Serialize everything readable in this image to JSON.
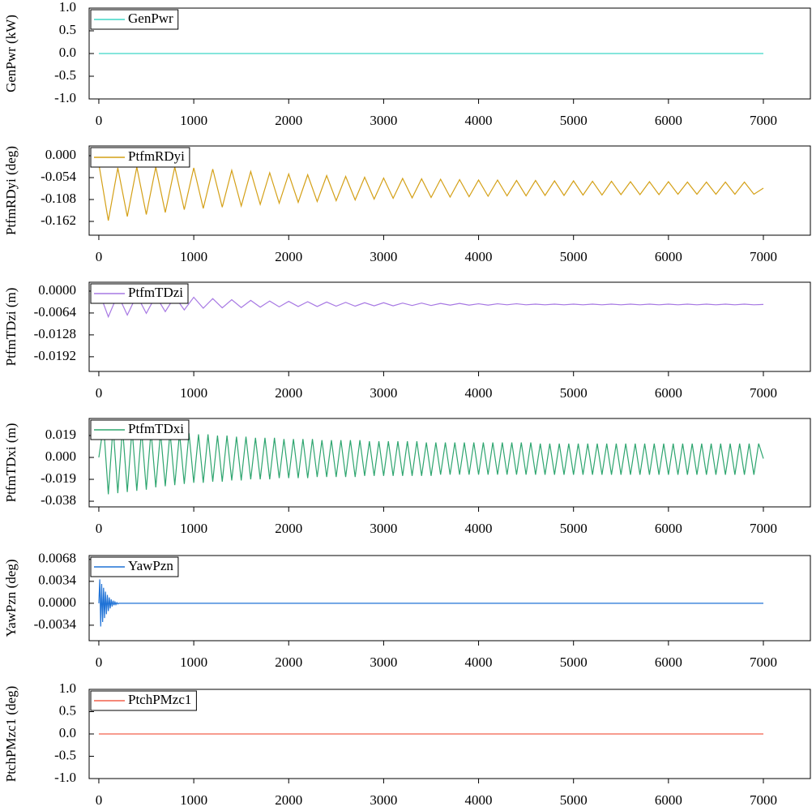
{
  "chart_data": [
    {
      "type": "line",
      "ylabel": "GenPwr (kW)",
      "legend": "upper left",
      "x": [
        0,
        7000
      ],
      "series": [
        {
          "name": "GenPwr",
          "color": "#3fd6c6",
          "values": [
            0,
            0
          ]
        }
      ],
      "xlim": [
        -102,
        7495
      ],
      "xticks": [
        0,
        1000,
        2000,
        3000,
        4000,
        5000,
        6000,
        7000
      ],
      "ylim": [
        -1.0,
        1.0
      ],
      "yticks": [
        {
          "value": 1,
          "label": "1.0"
        },
        0.5,
        {
          "value": 0,
          "label": "0.0"
        },
        -0.5,
        {
          "value": -1,
          "label": "-1.0"
        }
      ]
    },
    {
      "type": "line",
      "ylabel": "PtfmRDyi (deg)",
      "legend": "upper left",
      "x": [
        0,
        100,
        200,
        300,
        400,
        500,
        600,
        700,
        800,
        900,
        1000,
        1100,
        1200,
        1300,
        1400,
        1500,
        1600,
        1700,
        1800,
        1900,
        2000,
        2100,
        2200,
        2300,
        2400,
        2500,
        2600,
        2700,
        2800,
        2900,
        3000,
        3100,
        3200,
        3300,
        3400,
        3500,
        3600,
        3700,
        3800,
        3900,
        4000,
        4100,
        4200,
        4300,
        4400,
        4500,
        4600,
        4700,
        4800,
        4900,
        5000,
        5100,
        5200,
        5300,
        5400,
        5500,
        5600,
        5700,
        5800,
        5900,
        6000,
        6100,
        6200,
        6300,
        6400,
        6500,
        6600,
        6700,
        6800,
        6900,
        7000
      ],
      "series": [
        {
          "name": "PtfmRDyi",
          "color": "#d4a017",
          "values": [
            -0.02,
            -0.16,
            -0.03,
            -0.15,
            -0.028,
            -0.145,
            -0.028,
            -0.14,
            -0.028,
            -0.133,
            -0.03,
            -0.13,
            -0.033,
            -0.127,
            -0.036,
            -0.124,
            -0.039,
            -0.12,
            -0.042,
            -0.117,
            -0.045,
            -0.115,
            -0.047,
            -0.113,
            -0.049,
            -0.111,
            -0.051,
            -0.109,
            -0.053,
            -0.107,
            -0.055,
            -0.105,
            -0.056,
            -0.104,
            -0.057,
            -0.103,
            -0.058,
            -0.102,
            -0.059,
            -0.101,
            -0.06,
            -0.1,
            -0.06,
            -0.099,
            -0.061,
            -0.099,
            -0.061,
            -0.098,
            -0.062,
            -0.098,
            -0.062,
            -0.097,
            -0.063,
            -0.097,
            -0.063,
            -0.096,
            -0.064,
            -0.096,
            -0.064,
            -0.096,
            -0.064,
            -0.095,
            -0.065,
            -0.095,
            -0.065,
            -0.095,
            -0.065,
            -0.095,
            -0.065,
            -0.095,
            -0.08
          ]
        }
      ],
      "xlim": [
        -102,
        7495
      ],
      "xticks": [
        0,
        1000,
        2000,
        3000,
        4000,
        5000,
        6000,
        7000
      ],
      "ylim": [
        -0.196,
        0.024
      ],
      "yticks": [
        {
          "value": 0,
          "label": "0.000"
        },
        -0.054,
        -0.108,
        -0.162
      ]
    },
    {
      "type": "line",
      "ylabel": "PtfmTDzi (m)",
      "legend": "upper left",
      "x": [
        0,
        100,
        200,
        300,
        400,
        500,
        600,
        700,
        800,
        900,
        1000,
        1100,
        1200,
        1300,
        1400,
        1500,
        1600,
        1700,
        1800,
        1900,
        2000,
        2100,
        2200,
        2300,
        2400,
        2500,
        2600,
        2700,
        2800,
        2900,
        3000,
        3100,
        3200,
        3300,
        3400,
        3500,
        3600,
        3700,
        3800,
        3900,
        4000,
        4100,
        4200,
        4300,
        4400,
        4500,
        4600,
        4700,
        4800,
        4900,
        5000,
        5100,
        5200,
        5300,
        5400,
        5500,
        5600,
        5700,
        5800,
        5900,
        6000,
        6100,
        6200,
        6300,
        6400,
        6500,
        6600,
        6700,
        6800,
        6900,
        7000
      ],
      "series": [
        {
          "name": "PtfmTDzi",
          "color": "#a778e3",
          "values": [
            0,
            -0.0075,
            -0.001,
            -0.007,
            -0.0012,
            -0.0065,
            -0.0014,
            -0.006,
            -0.0016,
            -0.0055,
            -0.0018,
            -0.005,
            -0.0022,
            -0.0049,
            -0.0025,
            -0.0048,
            -0.0027,
            -0.0047,
            -0.0029,
            -0.0046,
            -0.003,
            -0.0045,
            -0.0031,
            -0.0045,
            -0.0032,
            -0.0044,
            -0.0033,
            -0.0044,
            -0.0034,
            -0.0043,
            -0.0034,
            -0.0043,
            -0.0035,
            -0.0042,
            -0.0035,
            -0.0042,
            -0.0036,
            -0.0041,
            -0.0036,
            -0.0041,
            -0.0037,
            -0.0041,
            -0.0037,
            -0.004,
            -0.0037,
            -0.004,
            -0.0038,
            -0.004,
            -0.0038,
            -0.004,
            -0.0038,
            -0.004,
            -0.0038,
            -0.004,
            -0.0038,
            -0.004,
            -0.0038,
            -0.004,
            -0.0038,
            -0.004,
            -0.0038,
            -0.004,
            -0.0038,
            -0.004,
            -0.0038,
            -0.004,
            -0.0038,
            -0.004,
            -0.0038,
            -0.004,
            -0.0039
          ]
        }
      ],
      "xlim": [
        -102,
        7495
      ],
      "xticks": [
        0,
        1000,
        2000,
        3000,
        4000,
        5000,
        6000,
        7000
      ],
      "ylim": [
        -0.0235,
        0.0026
      ],
      "yticks": [
        {
          "value": 0,
          "label": "0.0000"
        },
        -0.0064,
        -0.0128,
        -0.0192
      ]
    },
    {
      "type": "line",
      "ylabel": "PtfmTDxi (m)",
      "legend": "upper left",
      "x": [
        0,
        50,
        100,
        150,
        200,
        250,
        300,
        350,
        400,
        450,
        500,
        550,
        600,
        650,
        700,
        750,
        800,
        850,
        900,
        950,
        1000,
        1050,
        1100,
        1150,
        1200,
        1250,
        1300,
        1350,
        1400,
        1450,
        1500,
        1550,
        1600,
        1650,
        1700,
        1750,
        1800,
        1850,
        1900,
        1950,
        2000,
        2050,
        2100,
        2150,
        2200,
        2250,
        2300,
        2350,
        2400,
        2450,
        2500,
        2550,
        2600,
        2650,
        2700,
        2750,
        2800,
        2850,
        2900,
        2950,
        3000,
        3050,
        3100,
        3150,
        3200,
        3250,
        3300,
        3350,
        3400,
        3450,
        3500,
        3550,
        3600,
        3650,
        3700,
        3750,
        3800,
        3850,
        3900,
        3950,
        4000,
        4050,
        4100,
        4150,
        4200,
        4250,
        4300,
        4350,
        4400,
        4450,
        4500,
        4550,
        4600,
        4650,
        4700,
        4750,
        4800,
        4850,
        4900,
        4950,
        5000,
        5050,
        5100,
        5150,
        5200,
        5250,
        5300,
        5350,
        5400,
        5450,
        5500,
        5550,
        5600,
        5650,
        5700,
        5750,
        5800,
        5850,
        5900,
        5950,
        6000,
        6050,
        6100,
        6150,
        6200,
        6250,
        6300,
        6350,
        6400,
        6450,
        6500,
        6550,
        6600,
        6650,
        6700,
        6750,
        6800,
        6850,
        6900,
        6950,
        7000
      ],
      "series": [
        {
          "name": "PtfmTDxi",
          "color": "#2ea56f",
          "values": [
            0,
            0.028,
            -0.032,
            0.027,
            -0.031,
            0.026,
            -0.03,
            0.025,
            -0.029,
            0.024,
            -0.028,
            0.023,
            -0.026,
            0.022,
            -0.025,
            0.022,
            -0.024,
            0.021,
            -0.023,
            0.021,
            -0.022,
            0.02,
            -0.022,
            0.02,
            -0.021,
            0.019,
            -0.021,
            0.019,
            -0.02,
            0.018,
            -0.02,
            0.018,
            -0.019,
            0.017,
            -0.019,
            0.017,
            -0.019,
            0.017,
            -0.018,
            0.016,
            -0.018,
            0.016,
            -0.018,
            0.016,
            -0.018,
            0.016,
            -0.017,
            0.015,
            -0.017,
            0.015,
            -0.017,
            0.015,
            -0.017,
            0.015,
            -0.017,
            0.015,
            -0.016,
            0.014,
            -0.016,
            0.014,
            -0.016,
            0.014,
            -0.016,
            0.014,
            -0.016,
            0.014,
            -0.016,
            0.014,
            -0.016,
            0.013,
            -0.016,
            0.013,
            -0.015,
            0.013,
            -0.015,
            0.013,
            -0.015,
            0.013,
            -0.015,
            0.013,
            -0.015,
            0.013,
            -0.015,
            0.013,
            -0.015,
            0.013,
            -0.015,
            0.013,
            -0.015,
            0.013,
            -0.015,
            0.013,
            -0.015,
            0.012,
            -0.015,
            0.012,
            -0.015,
            0.012,
            -0.015,
            0.012,
            -0.015,
            0.012,
            -0.015,
            0.012,
            -0.015,
            0.012,
            -0.015,
            0.012,
            -0.015,
            0.012,
            -0.015,
            0.012,
            -0.015,
            0.012,
            -0.015,
            0.012,
            -0.015,
            0.012,
            -0.015,
            0.012,
            -0.015,
            0.012,
            -0.015,
            0.012,
            -0.015,
            0.012,
            -0.015,
            0.012,
            -0.015,
            0.012,
            -0.015,
            0.012,
            -0.015,
            0.012,
            -0.015,
            0.012,
            -0.015,
            0.012,
            -0.015,
            0.012,
            -0.001
          ]
        }
      ],
      "xlim": [
        -102,
        7495
      ],
      "xticks": [
        0,
        1000,
        2000,
        3000,
        4000,
        5000,
        6000,
        7000
      ],
      "ylim": [
        -0.0429,
        0.0338
      ],
      "yticks": [
        0.019,
        {
          "value": 0,
          "label": "0.000"
        },
        -0.019,
        -0.038
      ]
    },
    {
      "type": "line",
      "ylabel": "YawPzn (deg)",
      "legend": "upper left",
      "x": [
        0,
        10,
        20,
        30,
        40,
        50,
        60,
        70,
        80,
        90,
        100,
        110,
        120,
        130,
        140,
        150,
        160,
        170,
        180,
        190,
        200,
        210,
        7000
      ],
      "series": [
        {
          "name": "YawPzn",
          "color": "#1f72d6",
          "values": [
            0,
            0.0037,
            -0.0036,
            0.003,
            -0.0029,
            0.0024,
            -0.0023,
            0.0018,
            -0.0017,
            0.0013,
            -0.0012,
            0.0009,
            -0.0008,
            0.0006,
            -0.0005,
            0.0004,
            -0.0003,
            0.0002,
            -0.0002,
            0.0001,
            -0.0001,
            0,
            0
          ]
        }
      ],
      "xlim": [
        -102,
        7495
      ],
      "xticks": [
        0,
        1000,
        2000,
        3000,
        4000,
        5000,
        6000,
        7000
      ],
      "ylim": [
        -0.0058,
        0.0074
      ],
      "yticks": [
        0.0068,
        0.0034,
        {
          "value": 0,
          "label": "0.0000"
        },
        -0.0034
      ]
    },
    {
      "type": "line",
      "ylabel": "PtchPMzc1 (deg)",
      "legend": "upper left",
      "x": [
        0,
        7000
      ],
      "series": [
        {
          "name": "PtchPMzc1",
          "color": "#f2604c",
          "values": [
            0,
            0
          ]
        }
      ],
      "xlim": [
        -102,
        7495
      ],
      "xticks": [
        0,
        1000,
        2000,
        3000,
        4000,
        5000,
        6000,
        7000
      ],
      "ylim": [
        -1.0,
        1.0
      ],
      "yticks": [
        {
          "value": 1,
          "label": "1.0"
        },
        0.5,
        {
          "value": 0,
          "label": "0.0"
        },
        -0.5,
        {
          "value": -1,
          "label": "-1.0"
        }
      ]
    }
  ]
}
